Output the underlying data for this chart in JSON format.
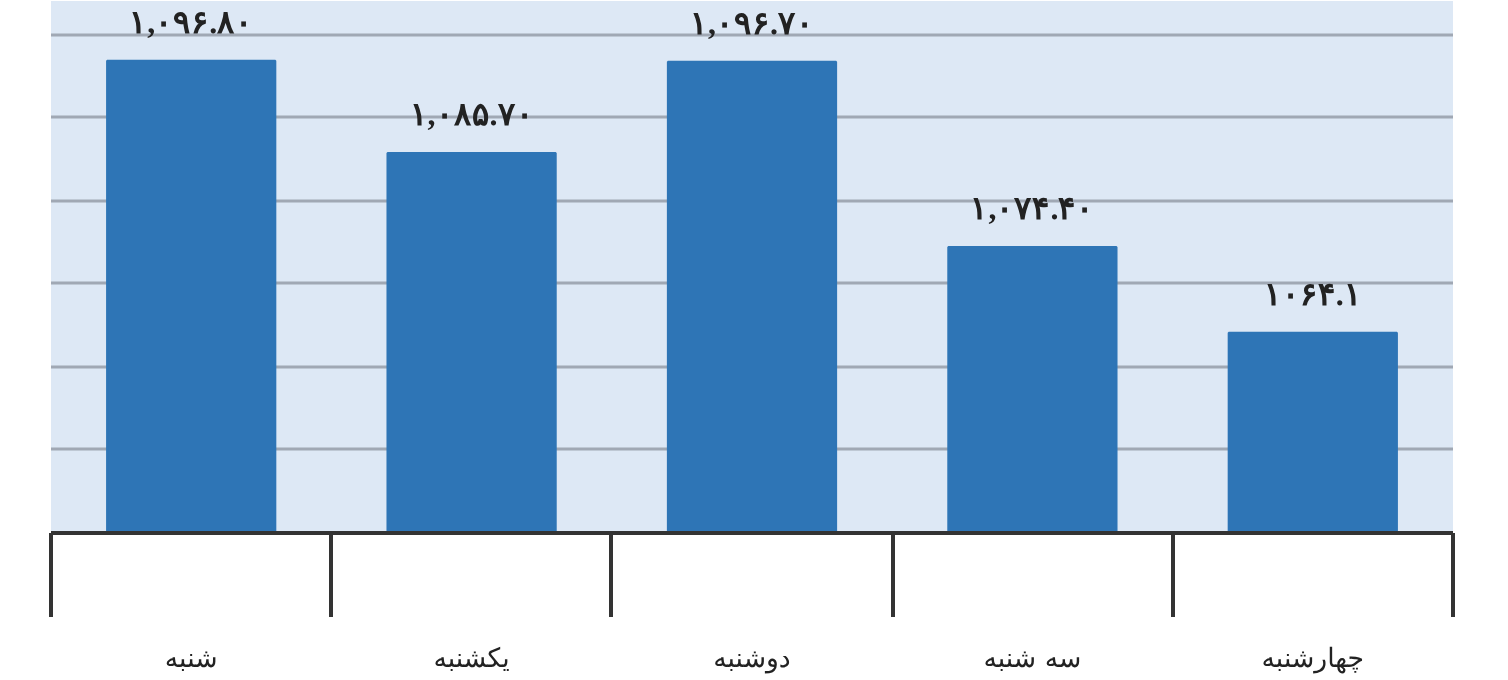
{
  "chart_data": {
    "type": "bar",
    "categories": [
      "شنبه",
      "یکشنبه",
      "دوشنبه",
      "سه شنبه",
      "چهارشنبه"
    ],
    "values": [
      1096.8,
      1085.7,
      1096.7,
      1074.4,
      1064.1
    ],
    "value_labels": [
      "۱,۰۹۶.۸۰",
      "۱,۰۸۵.۷۰",
      "۱,۰۹۶.۷۰",
      "۱,۰۷۴.۴۰",
      "۱۰۶۴.۱"
    ],
    "color": "#2e75b6",
    "ylim": [
      1040,
      1104
    ],
    "yticks": [
      {
        "value": 1050,
        "label": null
      },
      {
        "value": 1060,
        "label": null
      },
      {
        "value": 1070,
        "label": null
      },
      {
        "value": 1080,
        "label": null
      },
      {
        "value": 1090,
        "label": null
      },
      {
        "value": 1100,
        "label": null
      }
    ],
    "grid": "y",
    "tick_labels": "x"
  }
}
